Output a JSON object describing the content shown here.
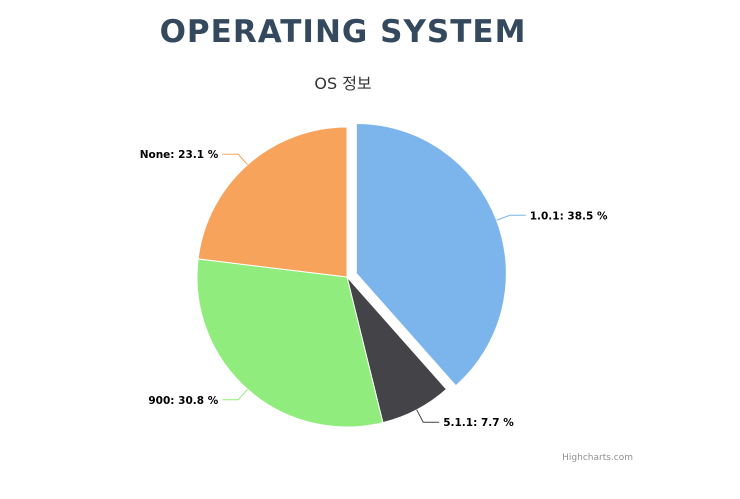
{
  "page": {
    "heading": "OPERATING SYSTEM"
  },
  "chart_data": {
    "type": "pie",
    "title": "OS 정보",
    "credits": "Highcharts.com",
    "series": [
      {
        "name": "",
        "points": [
          {
            "name": "1.0.1",
            "value": 38.5,
            "label": "1.0.1: 38.5 %",
            "color": "#7cb5ec",
            "sliced": true
          },
          {
            "name": "5.1.1",
            "value": 7.7,
            "label": "5.1.1: 7.7 %",
            "color": "#434348",
            "sliced": false
          },
          {
            "name": "900",
            "value": 30.8,
            "label": "900: 30.8 %",
            "color": "#90ed7d",
            "sliced": false
          },
          {
            "name": "None",
            "value": 23.1,
            "label": "None: 23.1 %",
            "color": "#f7a35c",
            "sliced": false
          }
        ]
      }
    ]
  }
}
